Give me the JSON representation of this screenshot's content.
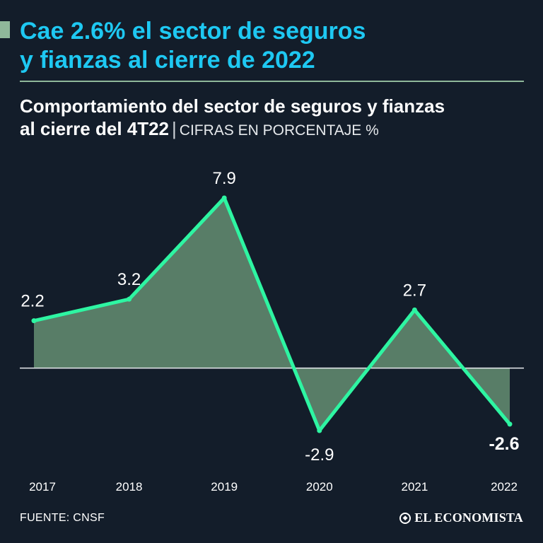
{
  "header": {
    "title_line1": "Cae 2.6% el sector de seguros",
    "title_line2": "y fianzas al cierre de 2022",
    "subtitle_line1": "Comportamiento del sector de seguros y fianzas",
    "subtitle_line2": "al cierre del 4T22",
    "separator": "|",
    "units": "CIFRAS EN PORCENTAJE %"
  },
  "chart_data": {
    "type": "area",
    "title": "Comportamiento del sector de seguros y fianzas al cierre del 4T22",
    "ylabel": "CIFRAS EN PORCENTAJE %",
    "xlabel": "",
    "categories": [
      "2017",
      "2018",
      "2019",
      "2020",
      "2021",
      "2022"
    ],
    "series": [
      {
        "name": "Sector de seguros y fianzas",
        "values": [
          2.2,
          3.2,
          7.9,
          -2.9,
          2.7,
          -2.6
        ]
      }
    ],
    "data_labels": [
      "2.2",
      "3.2",
      "7.9",
      "-2.9",
      "2.7",
      "-2.6"
    ],
    "ylim": [
      -2.9,
      7.9
    ],
    "baseline": 0,
    "grid": false,
    "colors": {
      "line": "#2ef5a2",
      "fill": "#587d67",
      "baseline": "#e8ecef",
      "label": "#ffffff"
    }
  },
  "footer": {
    "source": "FUENTE: CNSF",
    "logo_text": "EL ECONOMISTA"
  }
}
